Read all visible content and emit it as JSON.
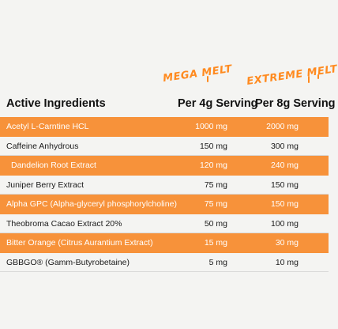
{
  "brands": {
    "col1": "MEGA MELT",
    "col2": "EXTREME MELT"
  },
  "header": {
    "ingredient": "Active Ingredients",
    "col1": "Per 4g Serving",
    "col2": "Per 8g Serving"
  },
  "colors": {
    "accent": "#f7923a",
    "background": "#f4f4f2"
  },
  "rows": [
    {
      "name": "Acetyl L-Carntine HCL",
      "v1": "1000 mg",
      "v2": "2000 mg",
      "highlight": true
    },
    {
      "name": "Caffeine Anhydrous",
      "v1": "150 mg",
      "v2": "300 mg",
      "highlight": false
    },
    {
      "name": "Dandelion Root Extract",
      "v1": "120 mg",
      "v2": "240 mg",
      "highlight": true
    },
    {
      "name": "Juniper Berry Extract",
      "v1": "75 mg",
      "v2": "150 mg",
      "highlight": false
    },
    {
      "name": "Alpha GPC (Alpha-glyceryl phosphorylcholine)",
      "v1": "75 mg",
      "v2": "150 mg",
      "highlight": true
    },
    {
      "name": "Theobroma Cacao Extract 20%",
      "v1": "50 mg",
      "v2": "100 mg",
      "highlight": false
    },
    {
      "name": "Bitter Orange (Citrus Aurantium Extract)",
      "v1": "15 mg",
      "v2": "30 mg",
      "highlight": true
    },
    {
      "name": "GBBGO® (Gamm-Butyrobetaine)",
      "v1": "5 mg",
      "v2": "10 mg",
      "highlight": false
    }
  ]
}
